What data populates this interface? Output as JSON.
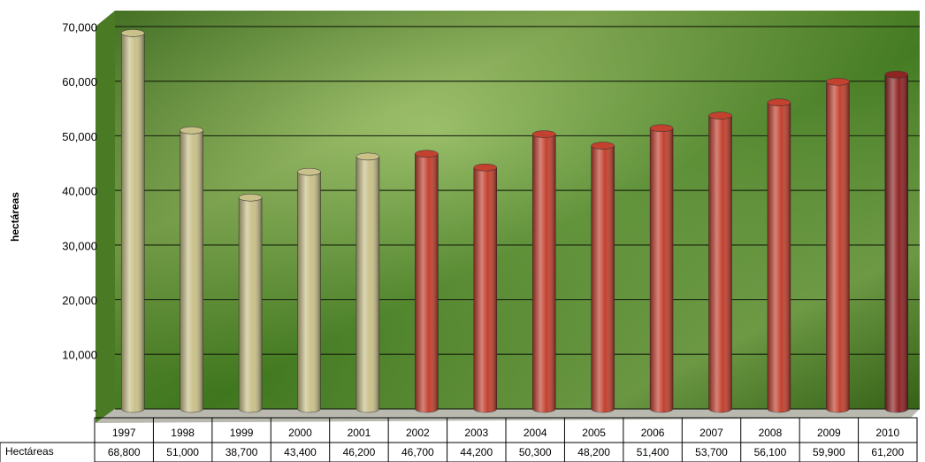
{
  "chart_data": {
    "type": "bar",
    "y_label": "hectáreas",
    "table_row_label": "Hectáreas",
    "categories": [
      "1997",
      "1998",
      "1999",
      "2000",
      "2001",
      "2002",
      "2003",
      "2004",
      "2005",
      "2006",
      "2007",
      "2008",
      "2009",
      "2010"
    ],
    "values": [
      68800,
      51000,
      38700,
      43400,
      46200,
      46700,
      44200,
      50300,
      48200,
      51400,
      53700,
      56100,
      59900,
      61200
    ],
    "value_labels": [
      "68,800",
      "51,000",
      "38,700",
      "43,400",
      "46,200",
      "46,700",
      "44,200",
      "50,300",
      "48,200",
      "51,400",
      "53,700",
      "56,100",
      "59,900",
      "61,200"
    ],
    "colors": [
      "#c9c08a",
      "#c9c08a",
      "#c9c08a",
      "#c9c08a",
      "#c9c08a",
      "#c2412f",
      "#c2412f",
      "#c2412f",
      "#c2412f",
      "#c2412f",
      "#c2412f",
      "#c2412f",
      "#c2412f",
      "#8e2424"
    ],
    "ylim": [
      0,
      70000
    ],
    "yticks": [
      {
        "value": 0,
        "label": "-"
      },
      {
        "value": 10000,
        "label": "10,000"
      },
      {
        "value": 20000,
        "label": "20,000"
      },
      {
        "value": 30000,
        "label": "30,000"
      },
      {
        "value": 40000,
        "label": "40,000"
      },
      {
        "value": 50000,
        "label": "50,000"
      },
      {
        "value": 60000,
        "label": "60,000"
      },
      {
        "value": 70000,
        "label": "70,000"
      }
    ],
    "grid": true
  }
}
